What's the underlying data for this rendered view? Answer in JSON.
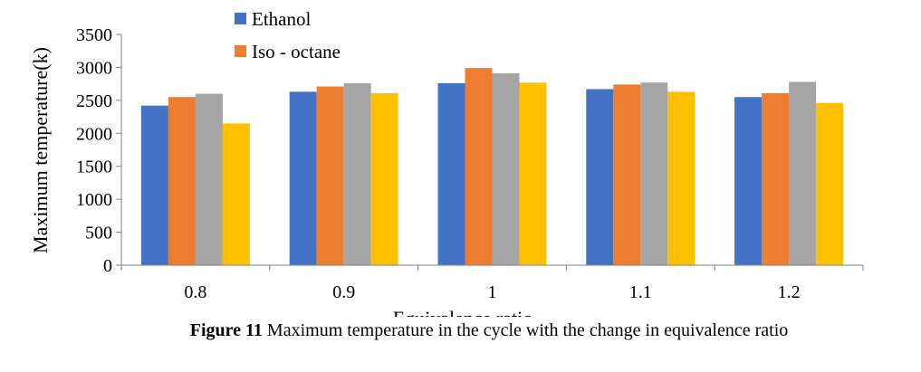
{
  "chart_data": {
    "type": "bar",
    "categories": [
      "0.8",
      "0.9",
      "1",
      "1.1",
      "1.2"
    ],
    "series": [
      {
        "name": "Ethanol",
        "color": "#4472C4",
        "values": [
          2420,
          2630,
          2760,
          2670,
          2550
        ]
      },
      {
        "name": "Iso - octane",
        "color": "#ED7D31",
        "values": [
          2550,
          2710,
          2990,
          2740,
          2610
        ]
      },
      {
        "name": "",
        "color": "#A5A5A5",
        "values": [
          2600,
          2760,
          2910,
          2770,
          2780
        ]
      },
      {
        "name": "",
        "color": "#FFC000",
        "values": [
          2150,
          2610,
          2770,
          2630,
          2460
        ]
      }
    ],
    "xlabel": "Equivalence ratio",
    "ylabel": "Maximum temperature(k)",
    "ylim": [
      0,
      3500
    ],
    "yticks": [
      0,
      500,
      1000,
      1500,
      2000,
      2500,
      3000,
      3500
    ],
    "grid": false,
    "legend": "top-center"
  },
  "caption": {
    "label": "Figure 11",
    "text": " Maximum temperature in the cycle with the change in equivalence ratio"
  }
}
